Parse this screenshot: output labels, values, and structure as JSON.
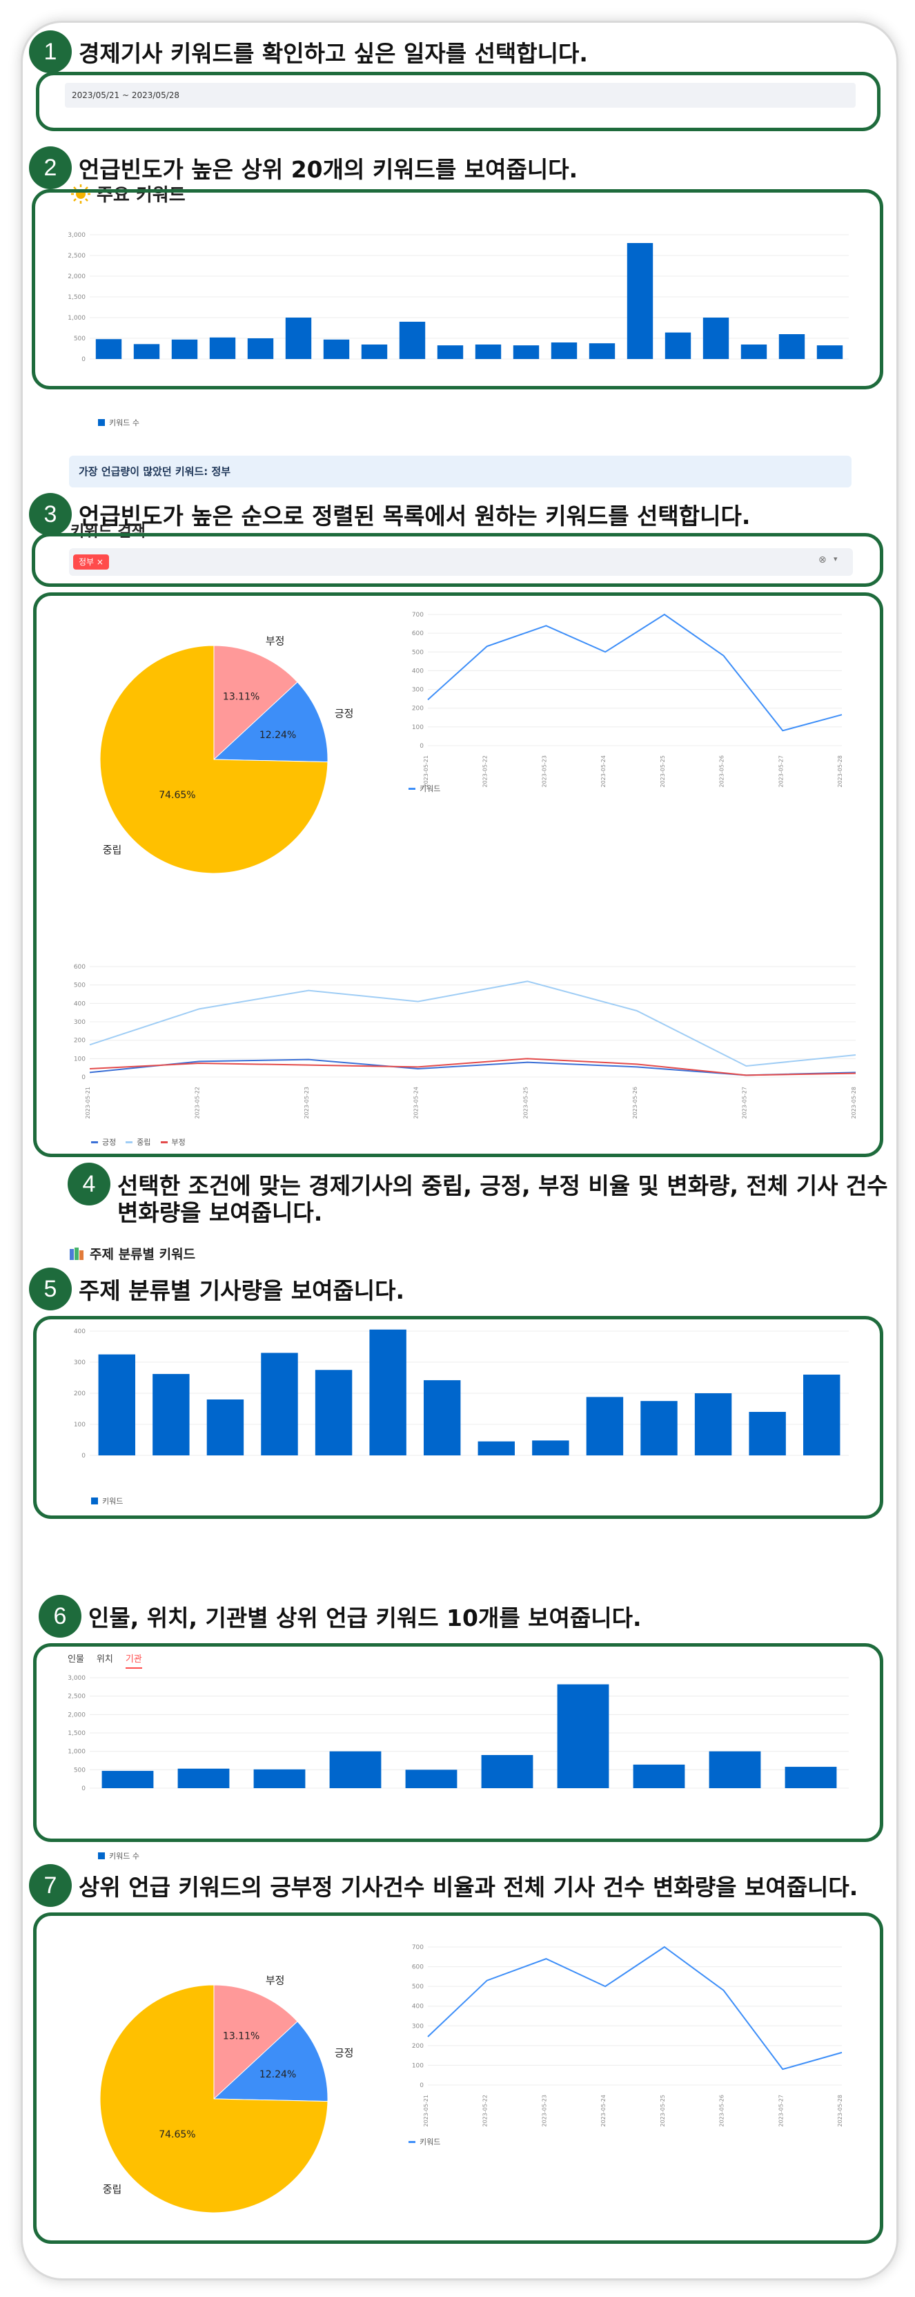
{
  "steps": [
    {
      "num": "1",
      "text": "경제기사 키워드를 확인하고 싶은 일자를 선택합니다."
    },
    {
      "num": "2",
      "text": "언급빈도가 높은 상위 20개의 키워드를 보여줍니다."
    },
    {
      "num": "3",
      "text": "언급빈도가 높은 순으로 정렬된 목록에서 원하는 키워드를 선택합니다."
    },
    {
      "num": "4",
      "text": "선택한 조건에 맞는 경제기사의 중립, 긍정, 부정 비율 및 변화량, 전체 기사 건수",
      "text2": "변화량을 보여줍니다."
    },
    {
      "num": "5",
      "text": "주제 분류별 기사량을 보여줍니다."
    },
    {
      "num": "6",
      "text": "인물, 위치, 기관별 상위 언급 키워드 10개를 보여줍니다."
    },
    {
      "num": "7",
      "text": "상위 언급 키워드의 긍부정 기사건수 비율과 전체 기사 건수 변화량을 보여줍니다."
    }
  ],
  "date_range": "2023/05/21 ~ 2023/05/28",
  "section_keywords": {
    "icon": "sun-icon",
    "title": "주요 키워드"
  },
  "top_keyword_callout": "가장 언급량이 많았던 키워드: 정부",
  "keyword_search": {
    "title": "키워드 검색",
    "selected": "정부"
  },
  "section_topic": {
    "icon": "books-icon",
    "title": "주제 분류별 키워드"
  },
  "tabs": {
    "items": [
      "인물",
      "위치",
      "기관"
    ],
    "active": 2
  },
  "legend": {
    "count": "키워드 수",
    "keyword": "키워드",
    "pos": "긍정",
    "neu": "중립",
    "neg": "부정"
  },
  "colors": {
    "bar": "#0066cc",
    "pos": "#3d8ef8",
    "neu": "#ffc000",
    "neg": "#ff9999",
    "line_pos": "#3a6fd6",
    "line_neu": "#9fcdf5",
    "line_neg": "#e34a4a"
  },
  "chart_data": [
    {
      "type": "bar",
      "id": "top20",
      "ylim": [
        0,
        3000
      ],
      "yticks": [
        "0",
        "500",
        "1,000",
        "1,500",
        "2,000",
        "2,500",
        "3,000"
      ],
      "values": [
        480,
        360,
        470,
        520,
        500,
        1000,
        470,
        350,
        900,
        330,
        350,
        330,
        400,
        380,
        2800,
        640,
        1000,
        350,
        600,
        330
      ]
    },
    {
      "type": "pie",
      "id": "pie1",
      "labels": [
        "중립",
        "긍정",
        "부정"
      ],
      "values": [
        74.65,
        12.24,
        13.11
      ],
      "pct": [
        "74.65%",
        "12.24%",
        "13.11%"
      ]
    },
    {
      "type": "line",
      "id": "line1",
      "x": [
        "2023-05-21",
        "2023-05-22",
        "2023-05-23",
        "2023-05-24",
        "2023-05-25",
        "2023-05-26",
        "2023-05-27",
        "2023-05-28"
      ],
      "values": [
        245,
        530,
        640,
        500,
        700,
        480,
        80,
        165
      ],
      "ylim": [
        0,
        700
      ],
      "yticks": [
        "0",
        "100",
        "200",
        "300",
        "400",
        "500",
        "600",
        "700"
      ]
    },
    {
      "type": "line",
      "id": "line2",
      "x": [
        "2023-05-21",
        "2023-05-22",
        "2023-05-23",
        "2023-05-24",
        "2023-05-25",
        "2023-05-26",
        "2023-05-27",
        "2023-05-28"
      ],
      "series": [
        {
          "name": "긍정",
          "values": [
            25,
            85,
            95,
            45,
            80,
            55,
            10,
            25
          ]
        },
        {
          "name": "중립",
          "values": [
            175,
            370,
            470,
            410,
            520,
            360,
            60,
            120
          ]
        },
        {
          "name": "부정",
          "values": [
            45,
            75,
            65,
            55,
            100,
            70,
            10,
            20
          ]
        }
      ],
      "ylim": [
        0,
        600
      ],
      "yticks": [
        "0",
        "100",
        "200",
        "300",
        "400",
        "500",
        "600"
      ]
    },
    {
      "type": "bar",
      "id": "topic",
      "ylim": [
        0,
        400
      ],
      "yticks": [
        "0",
        "100",
        "200",
        "300",
        "400"
      ],
      "values": [
        325,
        262,
        180,
        330,
        275,
        405,
        242,
        45,
        48,
        188,
        175,
        200,
        140,
        260
      ]
    },
    {
      "type": "bar",
      "id": "org",
      "ylim": [
        0,
        3000
      ],
      "yticks": [
        "0",
        "500",
        "1,000",
        "1,500",
        "2,000",
        "2,500",
        "3,000"
      ],
      "values": [
        470,
        530,
        510,
        1000,
        500,
        900,
        2820,
        640,
        1000,
        580
      ]
    },
    {
      "type": "pie",
      "id": "pie2",
      "labels": [
        "중립",
        "긍정",
        "부정"
      ],
      "values": [
        74.65,
        12.24,
        13.11
      ],
      "pct": [
        "74.65%",
        "12.24%",
        "13.11%"
      ]
    },
    {
      "type": "line",
      "id": "line3",
      "x": [
        "2023-05-21",
        "2023-05-22",
        "2023-05-23",
        "2023-05-24",
        "2023-05-25",
        "2023-05-26",
        "2023-05-27",
        "2023-05-28"
      ],
      "values": [
        245,
        530,
        640,
        500,
        700,
        480,
        80,
        165
      ],
      "ylim": [
        0,
        700
      ],
      "yticks": [
        "0",
        "100",
        "200",
        "300",
        "400",
        "500",
        "600",
        "700"
      ]
    }
  ]
}
